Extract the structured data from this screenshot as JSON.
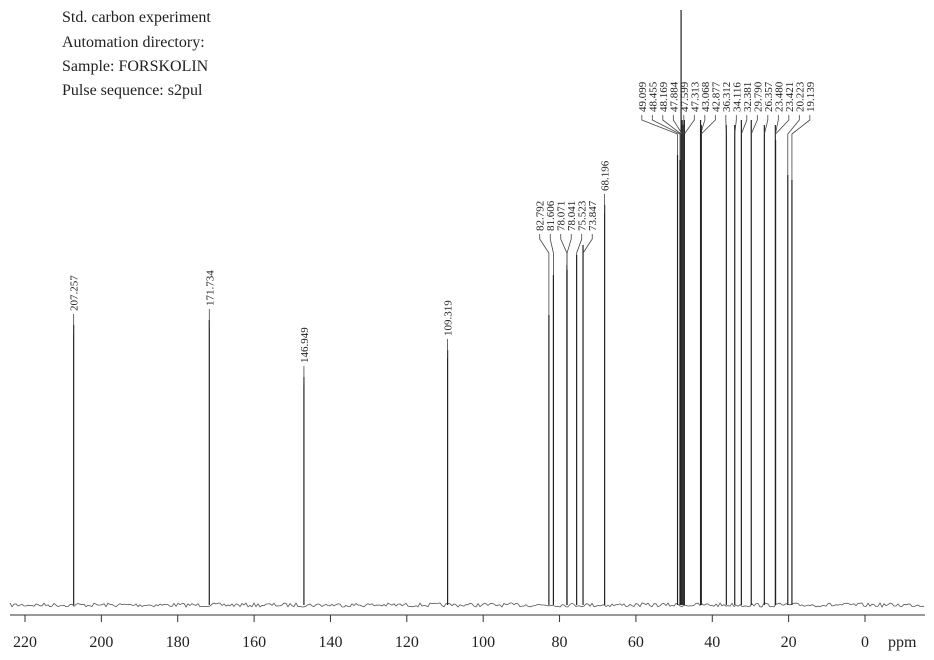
{
  "chart_data": {
    "type": "spectrum",
    "annotations": [
      "Std. carbon experiment",
      "Automation directory:",
      "Sample: FORSKOLIN",
      "Pulse sequence: s2pul"
    ],
    "x_label": "ppm",
    "x": [
      207.257,
      171.734,
      146.949,
      109.319,
      82.792,
      81.606,
      78.071,
      78.041,
      75.523,
      73.847,
      68.196,
      49.099,
      48.455,
      48.169,
      47.884,
      47.599,
      47.313,
      43.068,
      42.877,
      36.312,
      34.116,
      32.381,
      29.79,
      26.357,
      23.48,
      23.421,
      20.223,
      19.139
    ],
    "x_labels": [
      "207.257",
      "171.734",
      "146.949",
      "109.319",
      "82.792",
      "81.606",
      "78.071",
      "78.041",
      "75.523",
      "73.847",
      "68.196",
      "49.099",
      "48.455",
      "48.169",
      "47.884",
      "47.599",
      "47.313",
      "43.068",
      "42.877",
      "36.312",
      "34.116",
      "32.381",
      "29.790",
      "26.357",
      "23.480",
      "23.421",
      "20.223",
      "19.139"
    ],
    "values": [
      280,
      285,
      228,
      255,
      290,
      330,
      340,
      335,
      350,
      360,
      400,
      450,
      445,
      595,
      485,
      480,
      485,
      485,
      480,
      480,
      480,
      485,
      485,
      480,
      480,
      465,
      430,
      425
    ],
    "color": "#222222",
    "xlim": [
      220,
      0
    ],
    "ylim": [
      0,
      600
    ],
    "xticks": [
      220,
      200,
      180,
      160,
      140,
      120,
      100,
      80,
      60,
      40,
      20,
      0
    ]
  }
}
